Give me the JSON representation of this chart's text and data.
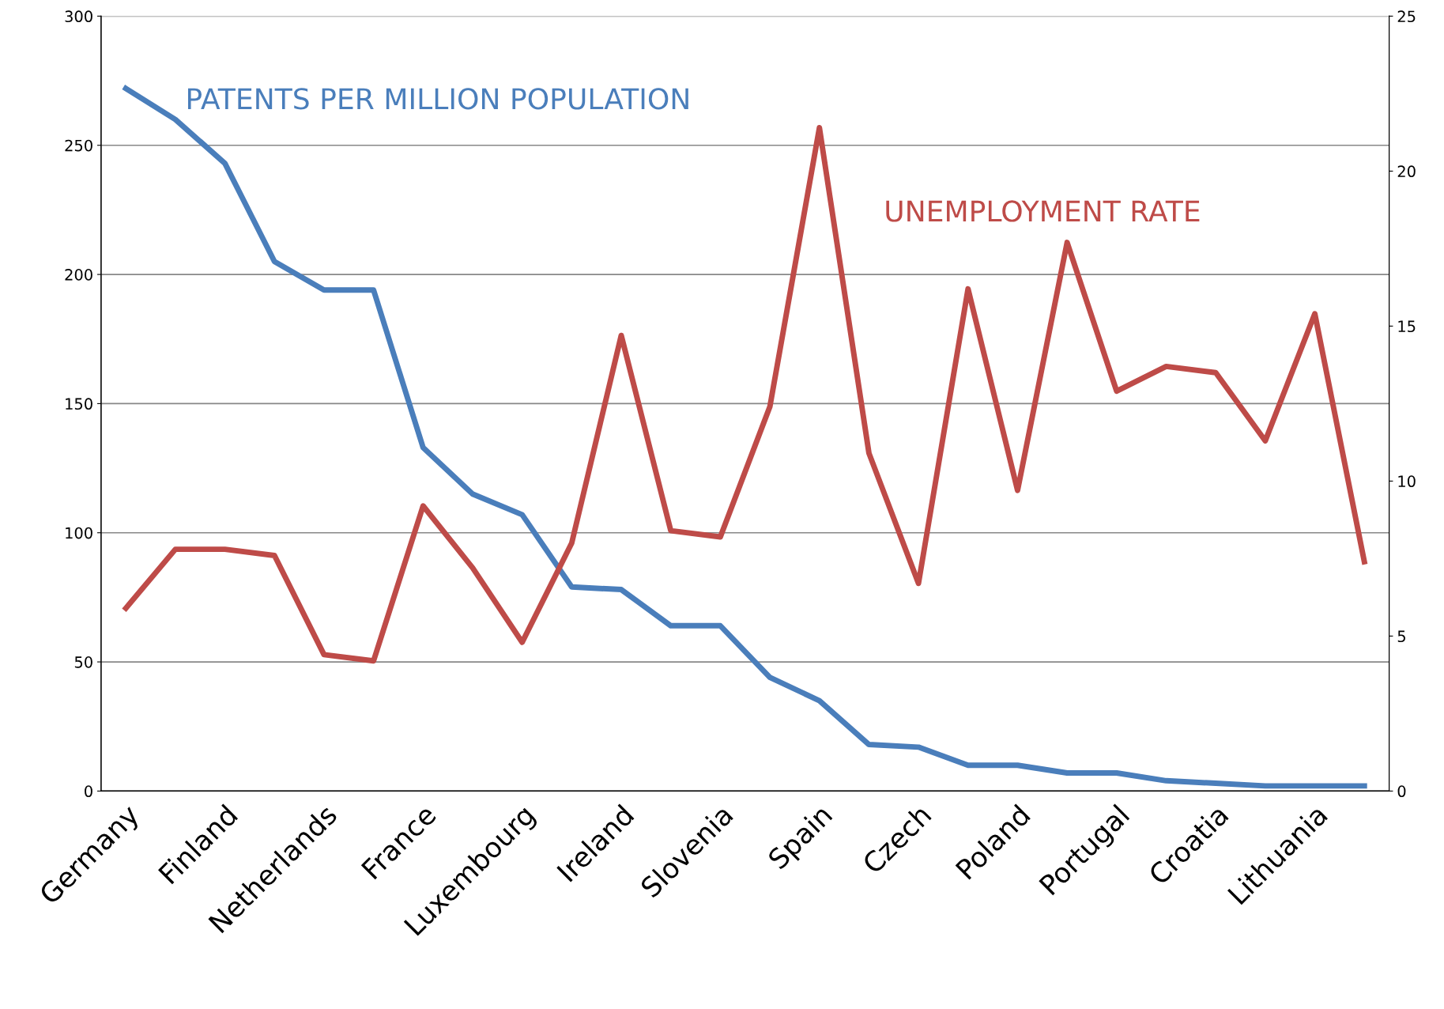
{
  "chart_data": {
    "type": "line",
    "categories": [
      "Germany",
      null,
      "Finland",
      null,
      "Netherlands",
      null,
      "France",
      null,
      "Luxembourg",
      null,
      "Ireland",
      null,
      "Slovenia",
      null,
      "Spain",
      null,
      "Czech",
      null,
      "Poland",
      null,
      "Portugal",
      null,
      "Croatia",
      null,
      "Lithuania",
      null
    ],
    "series": [
      {
        "name": "PATENTS PER MILLION POPULATION",
        "color": "#4a7ebb",
        "values": [
          272,
          260,
          243,
          205,
          194,
          194,
          133,
          115,
          107,
          79,
          78,
          64,
          64,
          44,
          35,
          18,
          17,
          10,
          10,
          7,
          7,
          4,
          3,
          2,
          2,
          2
        ]
      },
      {
        "name": "UNEMPLOYMENT RATE",
        "color": "#be4b48",
        "axis": "y2",
        "values": [
          5.9,
          7.8,
          7.8,
          7.6,
          4.4,
          4.2,
          9.2,
          7.2,
          4.8,
          8.0,
          14.7,
          8.4,
          8.2,
          12.4,
          21.4,
          10.9,
          6.7,
          16.2,
          9.7,
          17.7,
          12.9,
          13.7,
          13.5,
          11.3,
          15.4,
          7.4
        ]
      }
    ],
    "ylim": [
      0,
      300
    ],
    "yticks": [
      0,
      50,
      100,
      150,
      200,
      250,
      300
    ],
    "y2lim": [
      0,
      25
    ],
    "y2ticks": [
      0,
      5,
      10,
      15,
      20,
      25
    ],
    "grid": "y",
    "legend": false,
    "marker": "none",
    "line_style": "solid"
  }
}
